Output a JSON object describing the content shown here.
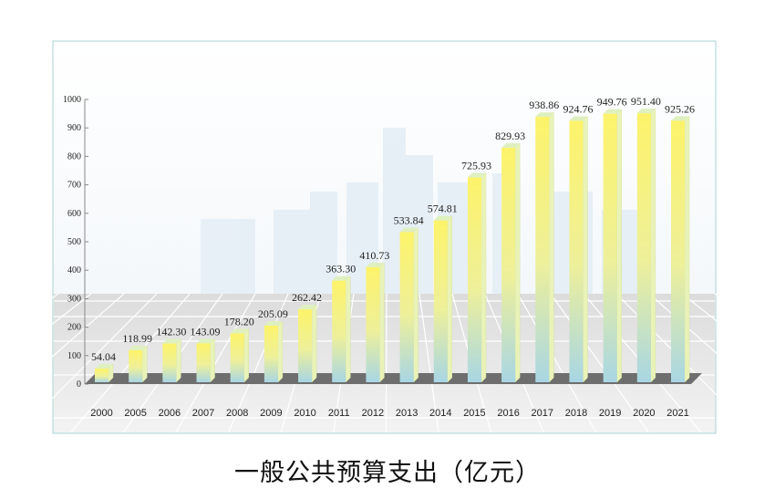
{
  "chart_data": {
    "type": "bar",
    "title": "一般公共预算支出（亿元）",
    "xlabel": "",
    "ylabel": "",
    "ylim": [
      0,
      1000
    ],
    "yticks": [
      0,
      100,
      200,
      300,
      400,
      500,
      600,
      700,
      800,
      900,
      1000
    ],
    "categories": [
      "2000",
      "2005",
      "2006",
      "2007",
      "2008",
      "2009",
      "2010",
      "2011",
      "2012",
      "2013",
      "2014",
      "2015",
      "2016",
      "2017",
      "2018",
      "2019",
      "2020",
      "2021"
    ],
    "values": [
      54.04,
      118.99,
      142.3,
      143.09,
      178.2,
      205.09,
      262.42,
      363.3,
      410.73,
      533.84,
      574.81,
      725.93,
      829.93,
      938.86,
      924.76,
      949.76,
      951.4,
      925.26
    ],
    "value_labels": [
      "54.04",
      "118.99",
      "142.30",
      "143.09",
      "178.20",
      "205.09",
      "262.42",
      "363.30",
      "410.73",
      "533.84",
      "574.81",
      "725.93",
      "829.93",
      "938.86",
      "924.76",
      "949.76",
      "951.40",
      "925.26"
    ],
    "colors": {
      "bar_top": "#fdf36a",
      "bar_bottom": "#a8d6e4",
      "bar_side": "#e9f3b8",
      "floor": "#6e6e6e",
      "frame": "#a9d3d3"
    }
  }
}
